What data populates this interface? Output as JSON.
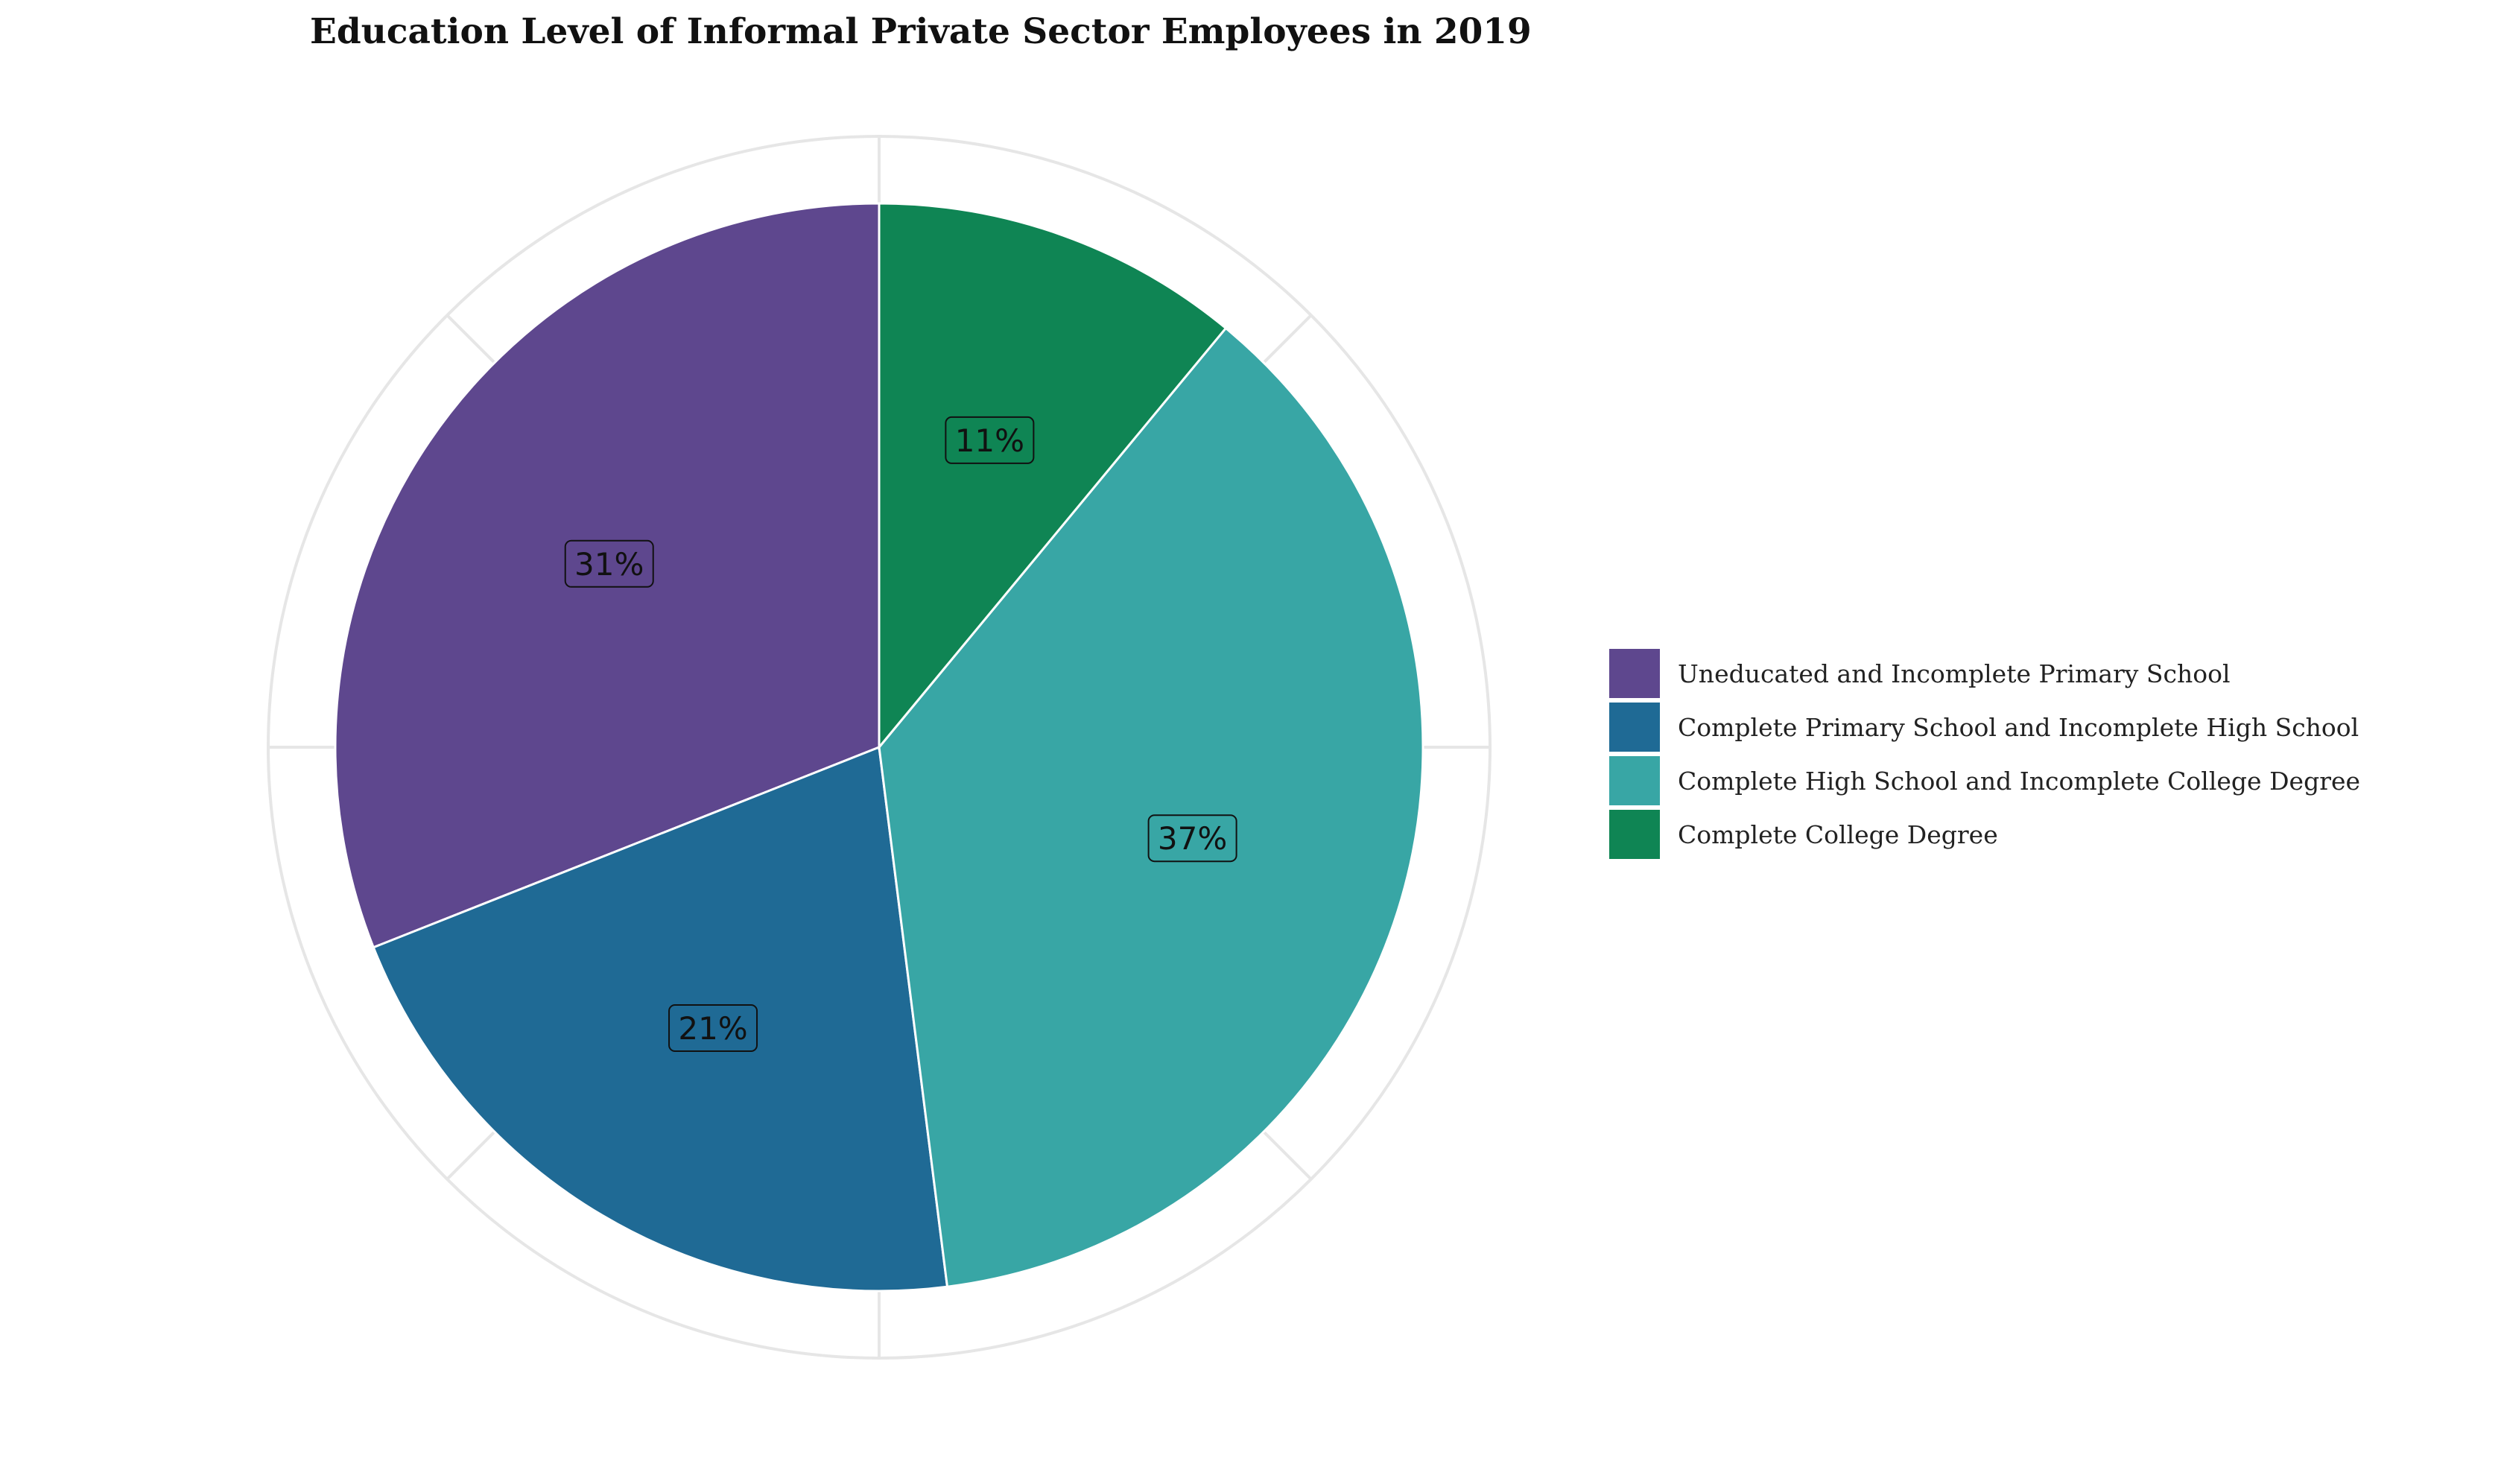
{
  "chart_data": {
    "type": "pie",
    "title": "Education Level of Informal Private Sector Employees in 2019",
    "categories": [
      "Uneducated and Incomplete Primary School",
      "Complete Primary School and Incomplete High School",
      "Complete High School and Incomplete College Degree",
      "Complete College Degree"
    ],
    "values": [
      31,
      21,
      37,
      11
    ],
    "labels": [
      "31%",
      "21%",
      "37%",
      "11%"
    ],
    "colors": [
      "#5E478E",
      "#1F6A95",
      "#38A6A5",
      "#0F8554"
    ],
    "legend_position": "right",
    "grid": true,
    "start_angle": "12 o'clock",
    "direction": "counterclockwise"
  }
}
